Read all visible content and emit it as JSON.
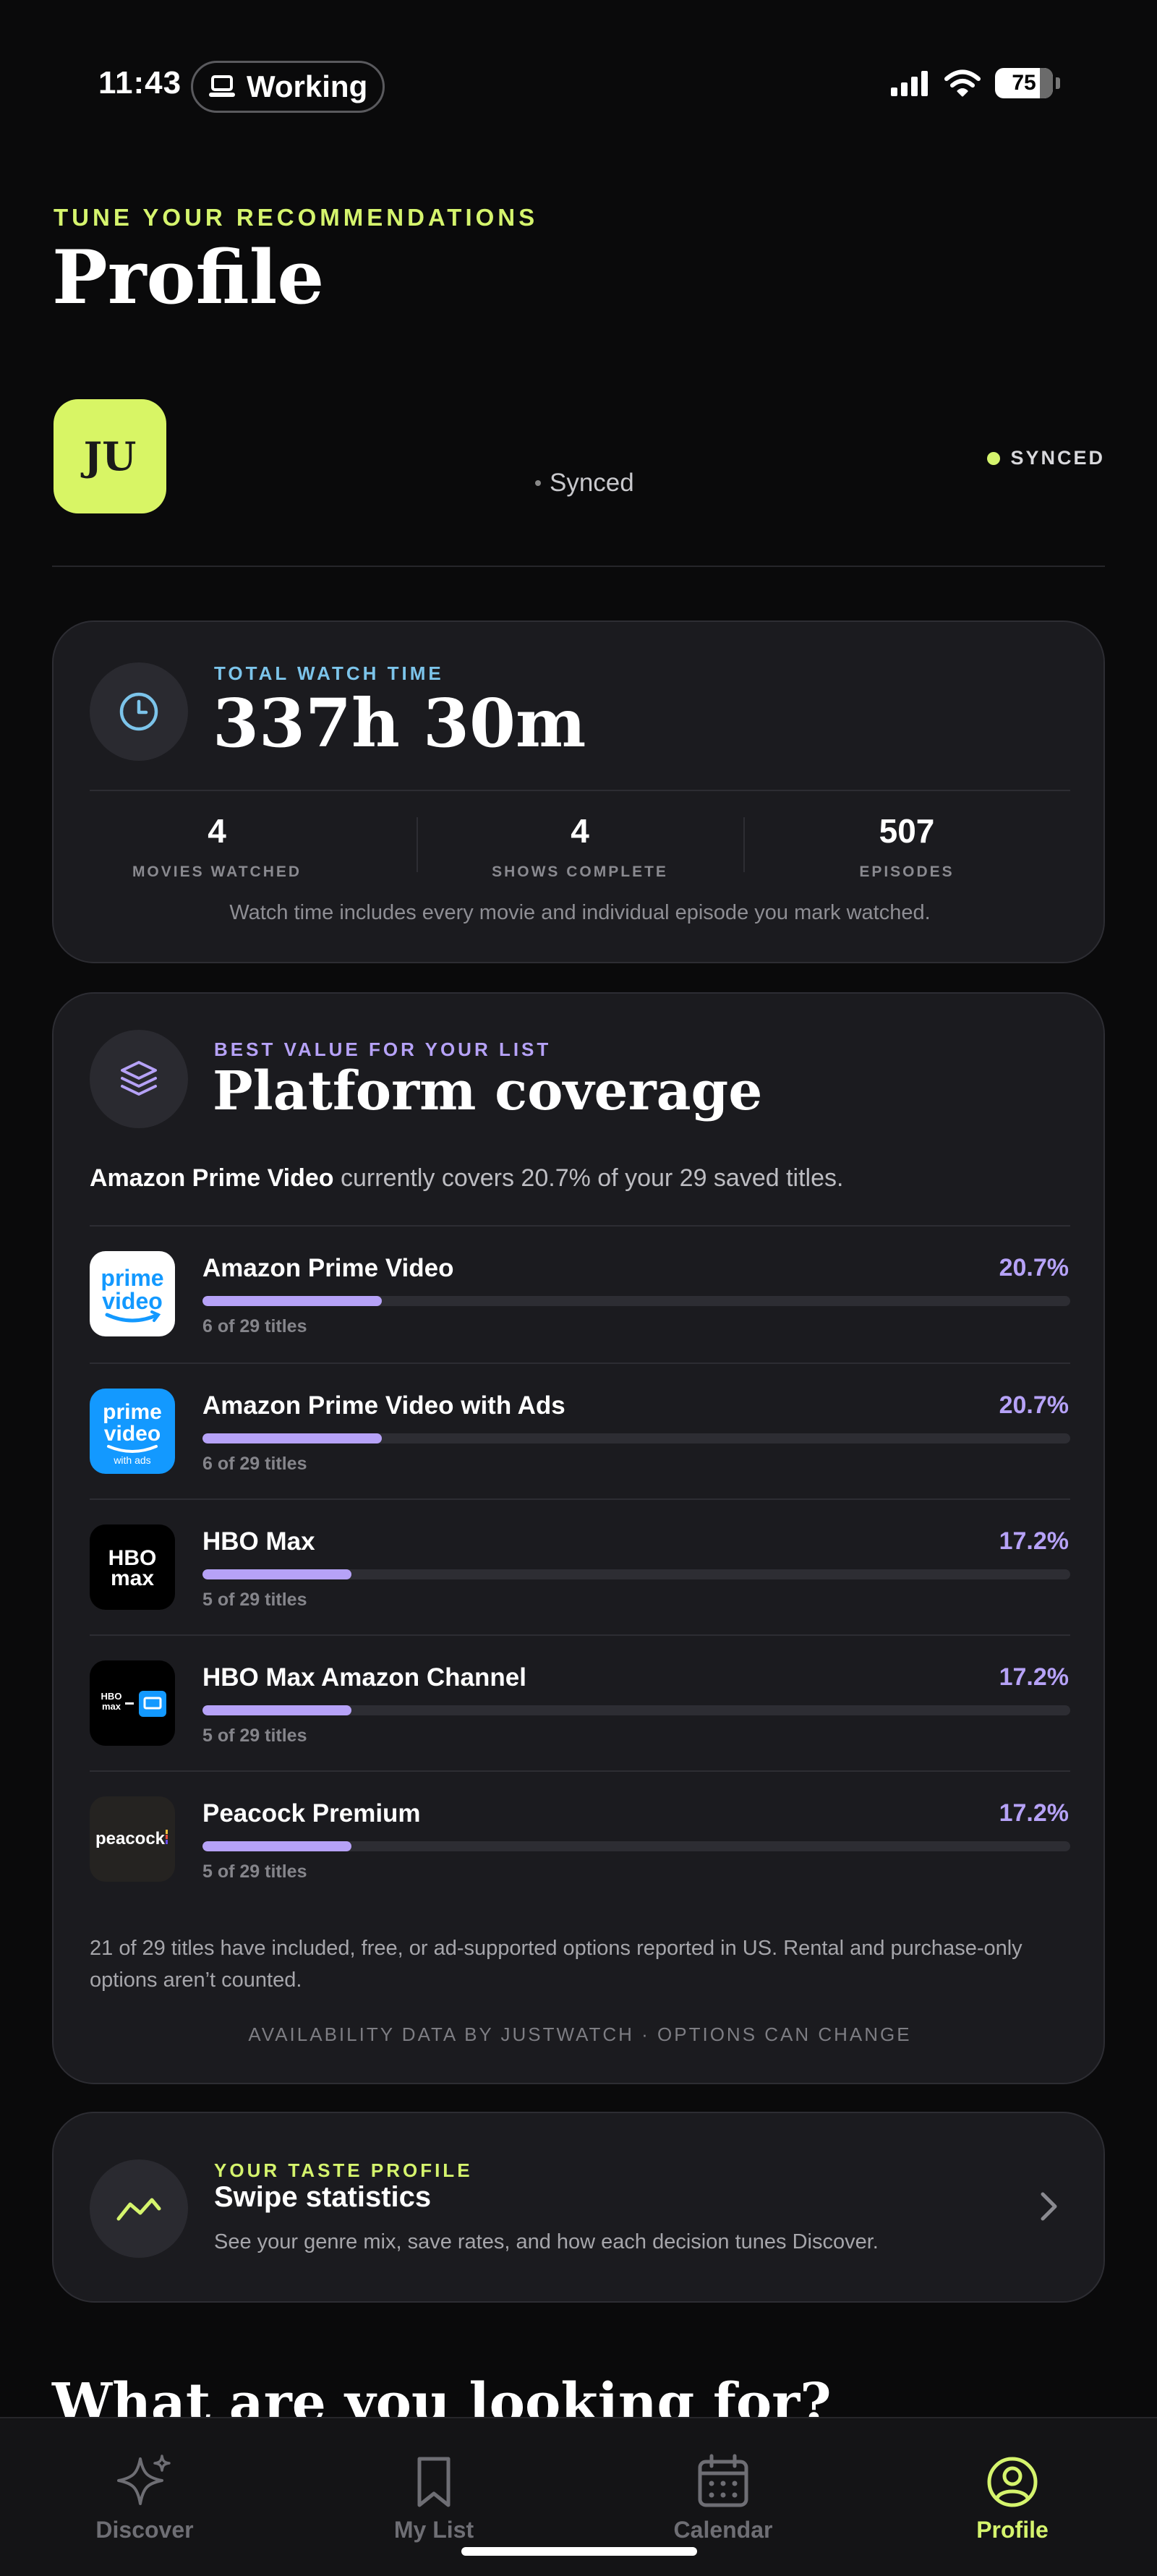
{
  "status_bar": {
    "time": "11:43",
    "focus_mode": "Working",
    "battery": "75"
  },
  "header": {
    "eyebrow": "TUNE YOUR RECOMMENDATIONS",
    "title": "Profile"
  },
  "profile": {
    "initials": "JU",
    "sync_text": "Synced",
    "sync_badge": "SYNCED"
  },
  "watch_time": {
    "eyebrow": "TOTAL WATCH TIME",
    "value": "337h 30m",
    "stats": [
      {
        "value": "4",
        "label": "MOVIES WATCHED"
      },
      {
        "value": "4",
        "label": "SHOWS COMPLETE"
      },
      {
        "value": "507",
        "label": "EPISODES"
      }
    ],
    "note": "Watch time includes every movie and individual episode you mark watched."
  },
  "platform": {
    "eyebrow": "BEST VALUE FOR YOUR LIST",
    "title": "Platform coverage",
    "summary_bold": "Amazon Prime Video",
    "summary_rest": " currently covers 20.7% of your 29 saved titles.",
    "rows": [
      {
        "name": "Amazon Prime Video",
        "pct": "20.7%",
        "fraction": 0.207,
        "count": "6 of 29 titles",
        "logo": "prime-video"
      },
      {
        "name": "Amazon Prime Video with Ads",
        "pct": "20.7%",
        "fraction": 0.207,
        "count": "6 of 29 titles",
        "logo": "prime-video-ads"
      },
      {
        "name": "HBO Max",
        "pct": "17.2%",
        "fraction": 0.172,
        "count": "5 of 29 titles",
        "logo": "hbo-max"
      },
      {
        "name": "HBO Max Amazon Channel",
        "pct": "17.2%",
        "fraction": 0.172,
        "count": "5 of 29 titles",
        "logo": "hbo-max-channel"
      },
      {
        "name": "Peacock Premium",
        "pct": "17.2%",
        "fraction": 0.172,
        "count": "5 of 29 titles",
        "logo": "peacock"
      }
    ],
    "logo_text": {
      "prime_top": "prime",
      "prime_bottom": "video",
      "prime_ads_sub": "with ads",
      "hbo_top": "HBO",
      "hbo_bottom": "max",
      "peacock": "peacock"
    },
    "footnote": "21 of 29 titles have included, free, or ad-supported options reported in US. Rental and purchase-only options aren’t counted.",
    "source": "AVAILABILITY DATA BY JUSTWATCH · OPTIONS CAN CHANGE"
  },
  "swipe": {
    "eyebrow": "YOUR TASTE PROFILE",
    "title": "Swipe statistics",
    "description": "See your genre mix, save rates, and how each decision tunes Discover."
  },
  "next_section_title": "What are you looking for?",
  "tabs": [
    {
      "label": "Discover",
      "icon": "sparkles-icon",
      "active": false
    },
    {
      "label": "My List",
      "icon": "bookmark-icon",
      "active": false
    },
    {
      "label": "Calendar",
      "icon": "calendar-icon",
      "active": false
    },
    {
      "label": "Profile",
      "icon": "person-circle-icon",
      "active": true
    }
  ],
  "colors": {
    "accent_lime": "#d5f46d",
    "accent_purple": "#b6a2f7",
    "accent_blue": "#7cc4ea",
    "card_bg": "#1b1b1f"
  }
}
